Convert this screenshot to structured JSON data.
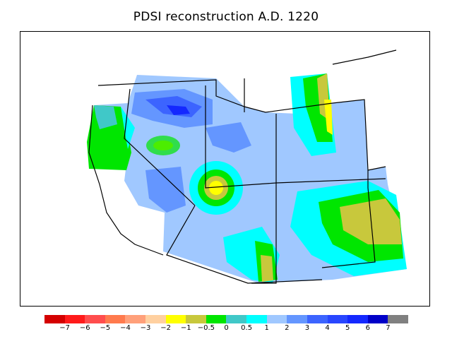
{
  "title": "PDSI reconstruction A.D. 1220",
  "legend": {
    "colors": [
      "#d40000",
      "#ff1a1a",
      "#ff4d4d",
      "#ff7a4d",
      "#ffa07a",
      "#ffd0a0",
      "#ffff00",
      "#c8c83c",
      "#00e600",
      "#40c8c8",
      "#00ffff",
      "#a0c8ff",
      "#6496ff",
      "#3c64ff",
      "#2846ff",
      "#1428ff",
      "#0000c8",
      "#808080"
    ],
    "ticks": [
      "−7",
      "−6",
      "−5",
      "−4",
      "−3",
      "−2",
      "−1",
      "−0.5",
      "0",
      "0.5",
      "1",
      "2",
      "3",
      "4",
      "5",
      "6",
      "7"
    ]
  }
}
